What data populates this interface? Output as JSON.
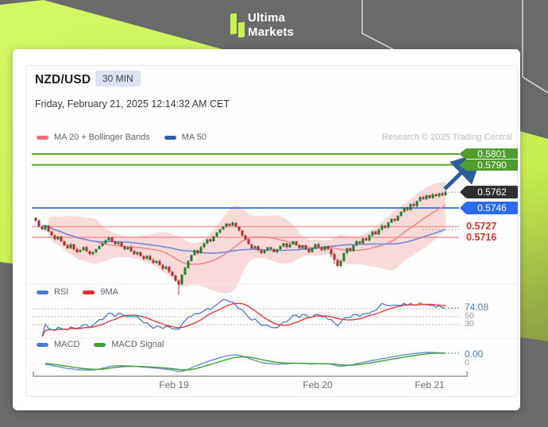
{
  "brand": {
    "line1": "Ultima",
    "line2": "Markets"
  },
  "header": {
    "symbol": "NZD/USD",
    "timeframe": "30 MIN",
    "timestamp": "Friday, February 21, 2025 12:14:32 AM CET",
    "credit": "Research © 2025 Trading Central"
  },
  "legends": {
    "main": [
      {
        "label": "MA 20 + Bollinger Bands",
        "color": "#f26d6d"
      },
      {
        "label": "MA 50",
        "color": "#2b5ea3"
      }
    ],
    "rsi": [
      {
        "label": "RSI",
        "color": "#4c79d6"
      },
      {
        "label": "9MA",
        "color": "#e32b2b"
      }
    ],
    "macd": [
      {
        "label": "MACD",
        "color": "#4c79d6"
      },
      {
        "label": "MACD Signal",
        "color": "#3aa32f"
      }
    ]
  },
  "chart_data": {
    "type": "candlestick",
    "symbol": "NZD/USD",
    "interval": "30 MIN",
    "x_ticks": [
      "Feb 19",
      "Feb 20",
      "Feb 21"
    ],
    "levels": [
      {
        "role": "resistance-upper",
        "value": 0.5801,
        "label": "0.5801",
        "style": "green-tag"
      },
      {
        "role": "resistance-lower",
        "value": 0.579,
        "label": "0.5790",
        "style": "green-tag"
      },
      {
        "role": "last-price",
        "value": 0.5762,
        "label": "0.5762",
        "style": "dark-tag"
      },
      {
        "role": "pivot",
        "value": 0.5746,
        "label": "0.5746",
        "style": "blue-tag"
      },
      {
        "role": "support-upper",
        "value": 0.5727,
        "label": "0.5727",
        "style": "red-text"
      },
      {
        "role": "support-lower",
        "value": 0.5716,
        "label": "0.5716",
        "style": "red-text"
      }
    ],
    "indicators": {
      "ma20_window": 20,
      "ma50_window": 50,
      "bollinger_sigma": 2,
      "rsi": {
        "current": 74.08,
        "current_label": "74.08",
        "gridlines": [
          70,
          50,
          30
        ],
        "gridline_labels": [
          "50",
          "30"
        ]
      },
      "macd": {
        "current": 0.0,
        "current_label": "0.00",
        "zero_label": "0"
      }
    },
    "closes": [
      0.5733,
      0.5727,
      0.5724,
      0.5728,
      0.5722,
      0.5718,
      0.5714,
      0.5717,
      0.5712,
      0.5708,
      0.5705,
      0.5709,
      0.5704,
      0.5701,
      0.5703,
      0.5706,
      0.5702,
      0.5699,
      0.5701,
      0.5704,
      0.5707,
      0.571,
      0.5713,
      0.5716,
      0.5712,
      0.5709,
      0.5711,
      0.5707,
      0.5704,
      0.5706,
      0.5702,
      0.5699,
      0.5701,
      0.5697,
      0.5694,
      0.5697,
      0.5693,
      0.569,
      0.5692,
      0.5688,
      0.5684,
      0.5686,
      0.5681,
      0.5677,
      0.5672,
      0.5668,
      0.5678,
      0.5685,
      0.5692,
      0.5698,
      0.5703,
      0.57,
      0.5706,
      0.571,
      0.5714,
      0.5712,
      0.5717,
      0.5721,
      0.5724,
      0.5727,
      0.573,
      0.5728,
      0.5731,
      0.5727,
      0.5723,
      0.5718,
      0.5714,
      0.5709,
      0.5705,
      0.5707,
      0.5703,
      0.57,
      0.5703,
      0.5706,
      0.5704,
      0.5701,
      0.5704,
      0.5707,
      0.571,
      0.5706,
      0.5709,
      0.5712,
      0.5708,
      0.5705,
      0.5708,
      0.5704,
      0.5701,
      0.5705,
      0.5709,
      0.5706,
      0.5703,
      0.5707,
      0.5704,
      0.5699,
      0.5693,
      0.5687,
      0.5692,
      0.57,
      0.5705,
      0.5702,
      0.5708,
      0.5712,
      0.571,
      0.5715,
      0.5713,
      0.5718,
      0.5722,
      0.5719,
      0.5724,
      0.5728,
      0.5726,
      0.5731,
      0.5735,
      0.5733,
      0.5738,
      0.5742,
      0.5746,
      0.5744,
      0.575,
      0.5748,
      0.5753,
      0.5757,
      0.5755,
      0.5759,
      0.5756,
      0.576,
      0.5758,
      0.5761,
      0.5759,
      0.5762
    ],
    "colors": {
      "up": "#1f7d2c",
      "down": "#b03030",
      "resistance_line": "#56a529",
      "pivot_line": "#4d7df2",
      "support_line": "#f29b9b",
      "support_text": "#e63030",
      "last_tag": "#2f2f2f",
      "pivot_tag": "#2b6bf3",
      "resistance_tag": "#4f9d2c",
      "ma20": "#ef8b8b",
      "ma50": "#6d8cd5",
      "rsi": "#4c79d6",
      "rsi_ma": "#e23b3b",
      "macd": "#6d8cd5",
      "macd_signal": "#3aa32f",
      "arrow": "#2b5d9e",
      "band_fill": "rgba(244,143,143,0.33)",
      "background_accent": "#c9f24f"
    }
  }
}
